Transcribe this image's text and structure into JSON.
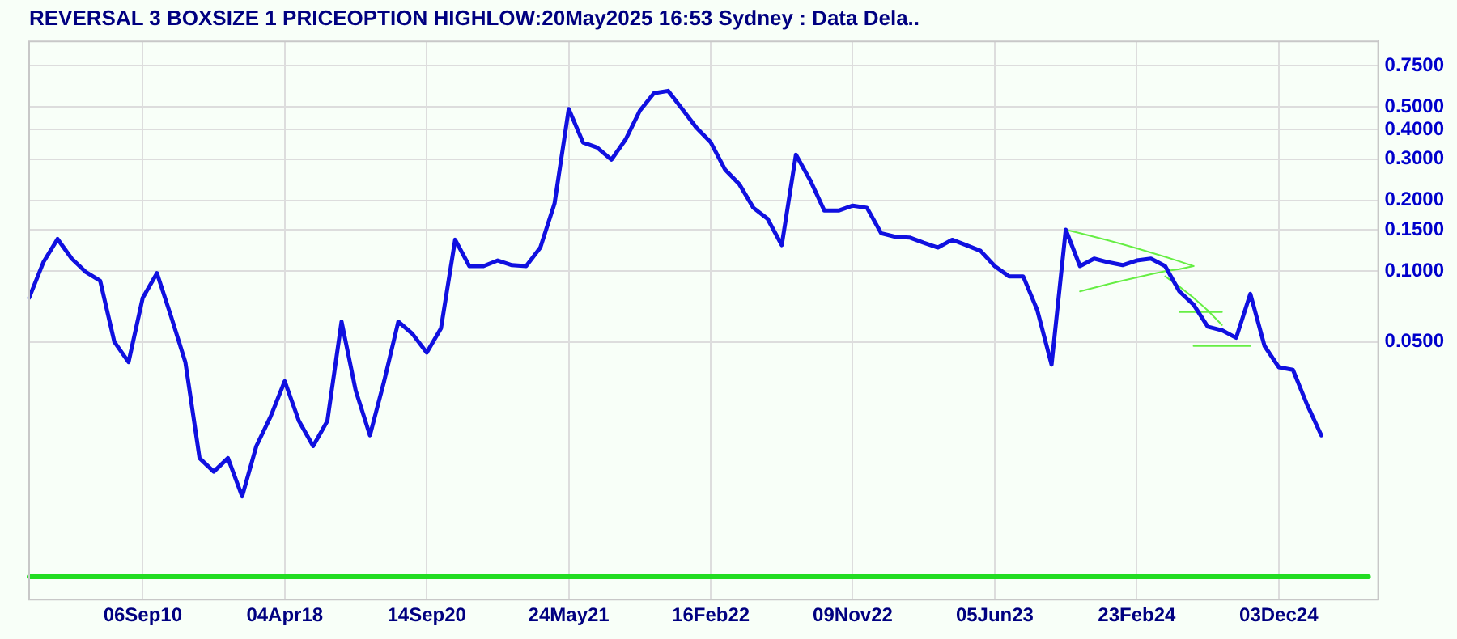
{
  "chart_data": {
    "type": "line",
    "title": "REVERSAL 3 BOXSIZE 1 PRICEOPTION HIGHLOW:20May2025 16:53 Sydney : Data Dela..",
    "categories": [
      null,
      null,
      null,
      null,
      null,
      null,
      null,
      null,
      "06Sep10",
      null,
      null,
      null,
      null,
      null,
      null,
      null,
      null,
      null,
      "04Apr18",
      null,
      null,
      null,
      null,
      null,
      null,
      null,
      null,
      null,
      "14Sep20",
      null,
      null,
      null,
      null,
      null,
      null,
      null,
      null,
      null,
      "24May21",
      null,
      null,
      null,
      null,
      null,
      null,
      null,
      null,
      null,
      "16Feb22",
      null,
      null,
      null,
      null,
      null,
      null,
      null,
      null,
      null,
      "09Nov22",
      null,
      null,
      null,
      null,
      null,
      null,
      null,
      null,
      null,
      "05Jun23",
      null,
      null,
      null,
      null,
      null,
      null,
      null,
      null,
      null,
      "23Feb24",
      null,
      null,
      null,
      null,
      null,
      null,
      null,
      null,
      null,
      "03Dec24",
      null,
      null,
      null,
      null,
      null,
      null,
      null
    ],
    "log": "y",
    "ylim": [
      0.004,
      0.95
    ],
    "yticks": [
      {
        "value": 0.05,
        "label": "0.0500"
      },
      {
        "value": 0.1,
        "label": "0.1000"
      },
      {
        "value": 0.15,
        "label": "0.1500"
      },
      {
        "value": 0.2,
        "label": "0.2000"
      },
      {
        "value": 0.3,
        "label": "0.3000"
      },
      {
        "value": 0.4,
        "label": "0.4000"
      },
      {
        "value": 0.5,
        "label": "0.5000"
      },
      {
        "value": 0.75,
        "label": "0.7500"
      }
    ],
    "grid": true,
    "ref_lines": [
      {
        "axis": "y",
        "value": 0.005,
        "color": "#22dd22"
      }
    ],
    "series": [
      {
        "color": "#1010e0",
        "values": [
          0.077,
          0.109,
          0.137,
          0.113,
          0.099,
          0.091,
          0.05,
          0.041,
          0.077,
          0.098,
          0.064,
          0.041,
          0.016,
          0.014,
          0.016,
          0.011,
          0.018,
          0.024,
          0.034,
          0.023,
          0.018,
          0.023,
          0.061,
          0.031,
          0.02,
          0.034,
          0.061,
          0.054,
          0.045,
          0.057,
          0.136,
          0.105,
          0.105,
          0.111,
          0.106,
          0.105,
          0.126,
          0.194,
          0.49,
          0.353,
          0.336,
          0.298,
          0.363,
          0.481,
          0.572,
          0.585,
          0.489,
          0.407,
          0.353,
          0.271,
          0.235,
          0.186,
          0.167,
          0.129,
          0.313,
          0.244,
          0.181,
          0.181,
          0.19,
          0.186,
          0.145,
          0.14,
          0.139,
          0.132,
          0.126,
          0.136,
          0.129,
          0.122,
          0.105,
          0.095,
          0.095,
          0.068,
          0.04,
          0.15,
          0.105,
          0.113,
          0.109,
          0.106,
          0.111,
          0.113,
          0.105,
          0.082,
          0.072,
          0.058,
          0.056,
          0.052,
          0.08,
          0.048,
          0.039,
          0.038,
          0.027,
          0.02,
          null,
          null,
          null,
          null
        ]
      },
      {
        "type": "line",
        "color": "#66ee44",
        "values": [
          null,
          null,
          null,
          null,
          null,
          null,
          null,
          null,
          null,
          null,
          null,
          null,
          null,
          null,
          null,
          null,
          null,
          null,
          null,
          null,
          null,
          null,
          null,
          null,
          null,
          null,
          null,
          null,
          null,
          null,
          null,
          null,
          null,
          null,
          null,
          null,
          null,
          null,
          null,
          null,
          null,
          null,
          null,
          null,
          null,
          null,
          null,
          null,
          null,
          null,
          null,
          null,
          null,
          null,
          null,
          null,
          null,
          null,
          null,
          null,
          null,
          null,
          null,
          null,
          null,
          null,
          null,
          null,
          null,
          null,
          null,
          null,
          null,
          0.15,
          0.145,
          0.14,
          0.135,
          0.13,
          0.125,
          0.12,
          0.115,
          0.11,
          0.105,
          null,
          null,
          null,
          null,
          null,
          null,
          null,
          null,
          null,
          null,
          null,
          null,
          null
        ]
      },
      {
        "type": "line",
        "color": "#66ee44",
        "values": [
          null,
          null,
          null,
          null,
          null,
          null,
          null,
          null,
          null,
          null,
          null,
          null,
          null,
          null,
          null,
          null,
          null,
          null,
          null,
          null,
          null,
          null,
          null,
          null,
          null,
          null,
          null,
          null,
          null,
          null,
          null,
          null,
          null,
          null,
          null,
          null,
          null,
          null,
          null,
          null,
          null,
          null,
          null,
          null,
          null,
          null,
          null,
          null,
          null,
          null,
          null,
          null,
          null,
          null,
          null,
          null,
          null,
          null,
          null,
          null,
          null,
          null,
          null,
          null,
          null,
          null,
          null,
          null,
          null,
          null,
          null,
          null,
          null,
          null,
          0.082,
          0.085,
          0.088,
          0.091,
          0.094,
          0.097,
          0.1,
          0.102,
          0.105,
          null,
          null,
          null,
          null,
          null,
          null,
          null,
          null,
          null,
          null,
          null,
          null,
          null
        ]
      },
      {
        "type": "line",
        "color": "#66ee44",
        "values": [
          null,
          null,
          null,
          null,
          null,
          null,
          null,
          null,
          null,
          null,
          null,
          null,
          null,
          null,
          null,
          null,
          null,
          null,
          null,
          null,
          null,
          null,
          null,
          null,
          null,
          null,
          null,
          null,
          null,
          null,
          null,
          null,
          null,
          null,
          null,
          null,
          null,
          null,
          null,
          null,
          null,
          null,
          null,
          null,
          null,
          null,
          null,
          null,
          null,
          null,
          null,
          null,
          null,
          null,
          null,
          null,
          null,
          null,
          null,
          null,
          null,
          null,
          null,
          null,
          null,
          null,
          null,
          null,
          null,
          null,
          null,
          null,
          null,
          null,
          null,
          null,
          null,
          null,
          null,
          null,
          0.095,
          0.086,
          0.077,
          0.068,
          0.059,
          null,
          null,
          null,
          null,
          null,
          null,
          null,
          null,
          null,
          null,
          null
        ]
      },
      {
        "type": "line",
        "color": "#66ee44",
        "values": [
          null,
          null,
          null,
          null,
          null,
          null,
          null,
          null,
          null,
          null,
          null,
          null,
          null,
          null,
          null,
          null,
          null,
          null,
          null,
          null,
          null,
          null,
          null,
          null,
          null,
          null,
          null,
          null,
          null,
          null,
          null,
          null,
          null,
          null,
          null,
          null,
          null,
          null,
          null,
          null,
          null,
          null,
          null,
          null,
          null,
          null,
          null,
          null,
          null,
          null,
          null,
          null,
          null,
          null,
          null,
          null,
          null,
          null,
          null,
          null,
          null,
          null,
          null,
          null,
          null,
          null,
          null,
          null,
          null,
          null,
          null,
          null,
          null,
          null,
          null,
          null,
          null,
          null,
          null,
          null,
          null,
          0.067,
          0.067,
          0.067,
          0.067,
          null,
          null,
          null,
          null,
          null,
          null,
          null,
          null,
          null,
          null,
          null
        ]
      },
      {
        "type": "line",
        "color": "#66ee44",
        "values": [
          null,
          null,
          null,
          null,
          null,
          null,
          null,
          null,
          null,
          null,
          null,
          null,
          null,
          null,
          null,
          null,
          null,
          null,
          null,
          null,
          null,
          null,
          null,
          null,
          null,
          null,
          null,
          null,
          null,
          null,
          null,
          null,
          null,
          null,
          null,
          null,
          null,
          null,
          null,
          null,
          null,
          null,
          null,
          null,
          null,
          null,
          null,
          null,
          null,
          null,
          null,
          null,
          null,
          null,
          null,
          null,
          null,
          null,
          null,
          null,
          null,
          null,
          null,
          null,
          null,
          null,
          null,
          null,
          null,
          null,
          null,
          null,
          null,
          null,
          null,
          null,
          null,
          null,
          null,
          null,
          null,
          null,
          0.048,
          0.048,
          0.048,
          0.048,
          0.048,
          null,
          null,
          null,
          null,
          null,
          null,
          null,
          null,
          null
        ]
      }
    ]
  }
}
